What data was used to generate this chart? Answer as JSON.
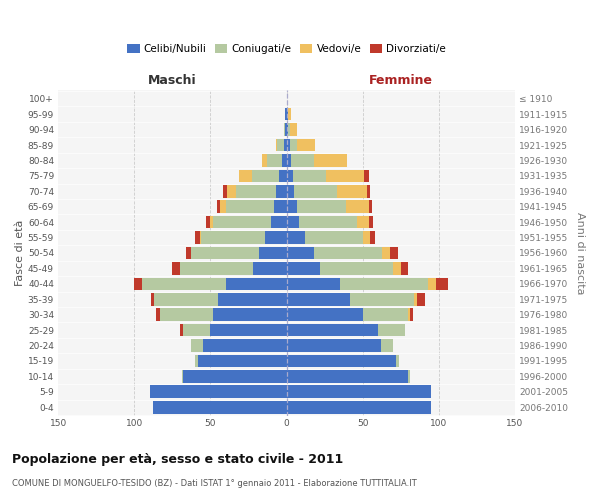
{
  "age_groups": [
    "0-4",
    "5-9",
    "10-14",
    "15-19",
    "20-24",
    "25-29",
    "30-34",
    "35-39",
    "40-44",
    "45-49",
    "50-54",
    "55-59",
    "60-64",
    "65-69",
    "70-74",
    "75-79",
    "80-84",
    "85-89",
    "90-94",
    "95-99",
    "100+"
  ],
  "birth_years": [
    "2006-2010",
    "2001-2005",
    "1996-2000",
    "1991-1995",
    "1986-1990",
    "1981-1985",
    "1976-1980",
    "1971-1975",
    "1966-1970",
    "1961-1965",
    "1956-1960",
    "1951-1955",
    "1946-1950",
    "1941-1945",
    "1936-1940",
    "1931-1935",
    "1926-1930",
    "1921-1925",
    "1916-1920",
    "1911-1915",
    "≤ 1910"
  ],
  "maschi": {
    "celibi": [
      88,
      90,
      68,
      58,
      55,
      50,
      48,
      45,
      40,
      22,
      18,
      14,
      10,
      8,
      7,
      5,
      3,
      2,
      1,
      1,
      0
    ],
    "coniugati": [
      0,
      0,
      1,
      2,
      8,
      18,
      35,
      42,
      55,
      48,
      45,
      42,
      38,
      32,
      26,
      18,
      10,
      4,
      1,
      0,
      0
    ],
    "vedovi": [
      0,
      0,
      0,
      0,
      0,
      0,
      0,
      0,
      0,
      0,
      0,
      1,
      2,
      4,
      6,
      8,
      3,
      1,
      0,
      0,
      0
    ],
    "divorziati": [
      0,
      0,
      0,
      0,
      0,
      2,
      3,
      2,
      5,
      5,
      3,
      3,
      3,
      2,
      3,
      0,
      0,
      0,
      0,
      0,
      0
    ]
  },
  "femmine": {
    "nubili": [
      95,
      95,
      80,
      72,
      62,
      60,
      50,
      42,
      35,
      22,
      18,
      12,
      8,
      7,
      5,
      4,
      3,
      2,
      1,
      1,
      0
    ],
    "coniugate": [
      0,
      0,
      1,
      2,
      8,
      18,
      30,
      42,
      58,
      48,
      45,
      38,
      38,
      32,
      28,
      22,
      15,
      5,
      1,
      0,
      0
    ],
    "vedove": [
      0,
      0,
      0,
      0,
      0,
      0,
      1,
      2,
      5,
      5,
      5,
      5,
      8,
      15,
      20,
      25,
      22,
      12,
      5,
      2,
      0
    ],
    "divorziate": [
      0,
      0,
      0,
      0,
      0,
      0,
      2,
      5,
      8,
      5,
      5,
      3,
      3,
      2,
      2,
      3,
      0,
      0,
      0,
      0,
      0
    ]
  },
  "colors": {
    "celibi": "#4472c4",
    "coniugati": "#b5c9a1",
    "vedovi": "#f0c060",
    "divorziati": "#c0392b"
  },
  "xlim": 150,
  "title": "Popolazione per età, sesso e stato civile - 2011",
  "subtitle": "COMUNE DI MONGUELFO-TESIDO (BZ) - Dati ISTAT 1° gennaio 2011 - Elaborazione TUTTITALIA.IT",
  "xlabel_left": "Maschi",
  "xlabel_right": "Femmine",
  "ylabel_left": "Fasce di età",
  "ylabel_right": "Anni di nascita",
  "legend_labels": [
    "Celibi/Nubili",
    "Coniugati/e",
    "Vedovi/e",
    "Divorziati/e"
  ],
  "bg_color": "#ffffff",
  "plot_bg": "#f5f5f5",
  "grid_color": "#cccccc"
}
